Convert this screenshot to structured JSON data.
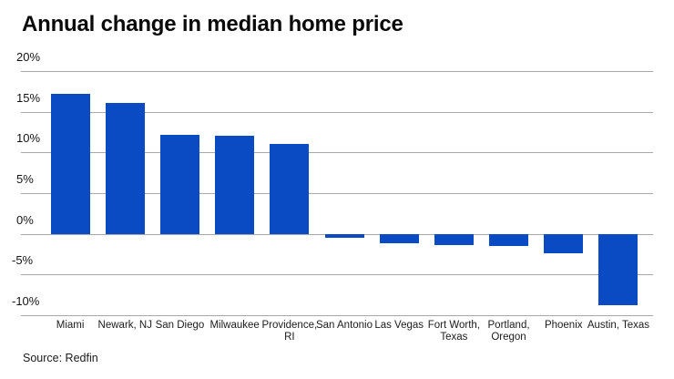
{
  "chart": {
    "title": "Annual change in median home price",
    "source": "Source: Redfin"
  },
  "chart_data": {
    "type": "bar",
    "title": "Annual change in median home price",
    "categories": [
      "Miami",
      "Newark, NJ",
      "San Diego",
      "Milwaukee",
      "Providence, RI",
      "San Antonio",
      "Las Vegas",
      "Fort Worth, Texas",
      "Portland, Oregon",
      "Phoenix",
      "Austin, Texas"
    ],
    "values": [
      17.2,
      16.1,
      12.2,
      12.1,
      11.0,
      -0.5,
      -1.2,
      -1.4,
      -1.5,
      -2.4,
      -8.8
    ],
    "xlabel": "",
    "ylabel": "",
    "ylim": [
      -10,
      20
    ],
    "yticks": [
      20,
      15,
      10,
      5,
      0,
      -5,
      -10
    ],
    "ytick_suffix": "%",
    "grid": true,
    "legend": "none",
    "bar_color": "#0a4bc4",
    "grid_color": "#a8a8a8",
    "source": "Source: Redfin"
  }
}
